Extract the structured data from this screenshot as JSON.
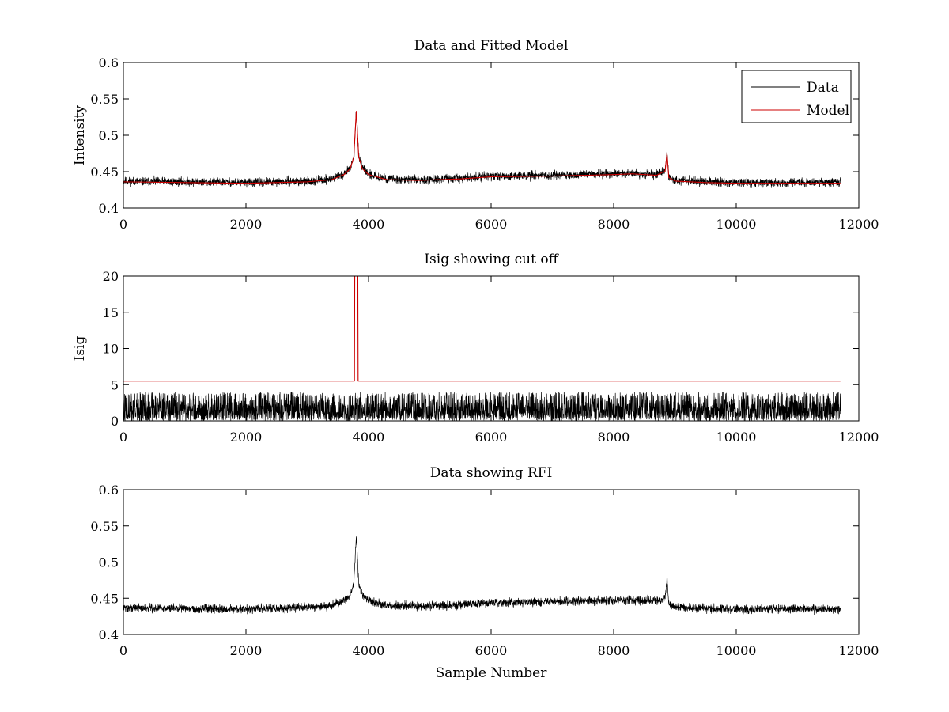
{
  "chart_data": [
    {
      "type": "line",
      "title": "Data and Fitted Model",
      "xlabel": "",
      "ylabel": "Intensity",
      "xlim": [
        0,
        12000
      ],
      "ylim": [
        0.4,
        0.6
      ],
      "xticks": [
        0,
        2000,
        4000,
        6000,
        8000,
        10000,
        12000
      ],
      "yticks": [
        0.4,
        0.45,
        0.5,
        0.55,
        0.6
      ],
      "ytick_labels": [
        "0.4",
        "0.45",
        "0.5",
        "0.55",
        "0.6"
      ],
      "grid": false,
      "legend": "top-right",
      "series": [
        {
          "name": "Data",
          "color": "#000000",
          "noise": 0.004,
          "x": [
            0,
            1000,
            2000,
            3000,
            3400,
            3600,
            3700,
            3760,
            3800,
            3840,
            3900,
            4000,
            4300,
            4800,
            5500,
            6000,
            7000,
            8000,
            8300,
            8700,
            8840,
            8870,
            8900,
            9000,
            9500,
            10000,
            11000,
            11700
          ],
          "y": [
            0.437,
            0.436,
            0.435,
            0.437,
            0.44,
            0.447,
            0.455,
            0.47,
            0.535,
            0.47,
            0.455,
            0.447,
            0.44,
            0.439,
            0.441,
            0.444,
            0.445,
            0.447,
            0.448,
            0.446,
            0.452,
            0.476,
            0.443,
            0.438,
            0.436,
            0.435,
            0.435,
            0.435
          ]
        },
        {
          "name": "Model",
          "color": "#cc0000",
          "noise": 0,
          "x": [
            0,
            1000,
            2000,
            3000,
            3400,
            3600,
            3700,
            3760,
            3800,
            3840,
            3900,
            4000,
            4300,
            4800,
            5500,
            6000,
            7000,
            8000,
            8300,
            8700,
            8840,
            8870,
            8900,
            9000,
            9500,
            10000,
            11000,
            11700
          ],
          "y": [
            0.436,
            0.435,
            0.434,
            0.436,
            0.439,
            0.446,
            0.454,
            0.47,
            0.533,
            0.47,
            0.454,
            0.446,
            0.439,
            0.438,
            0.44,
            0.443,
            0.444,
            0.446,
            0.447,
            0.445,
            0.451,
            0.475,
            0.442,
            0.437,
            0.435,
            0.434,
            0.434,
            0.434
          ]
        }
      ]
    },
    {
      "type": "line",
      "title": "Isig showing cut off",
      "xlabel": "",
      "ylabel": "Isig",
      "xlim": [
        0,
        12000
      ],
      "ylim": [
        0,
        20
      ],
      "xticks": [
        0,
        2000,
        4000,
        6000,
        8000,
        10000,
        12000
      ],
      "yticks": [
        0,
        5,
        10,
        15,
        20
      ],
      "ytick_labels": [
        "0",
        "5",
        "10",
        "15",
        "20"
      ],
      "grid": false,
      "series": [
        {
          "color": "#000000",
          "style": "noise",
          "x": [
            0,
            11700
          ],
          "y": [
            0,
            0
          ],
          "amplitude": 3.0,
          "max": 4.0
        },
        {
          "color": "#cc0000",
          "style": "line",
          "x": [
            0,
            3770,
            3775,
            3825,
            3830,
            11700
          ],
          "y": [
            5.5,
            5.5,
            20,
            20,
            5.5,
            5.5
          ]
        }
      ]
    },
    {
      "type": "line",
      "title": "Data showing RFI",
      "xlabel": "Sample Number",
      "ylabel": "",
      "xlim": [
        0,
        12000
      ],
      "ylim": [
        0.4,
        0.6
      ],
      "xticks": [
        0,
        2000,
        4000,
        6000,
        8000,
        10000,
        12000
      ],
      "yticks": [
        0.4,
        0.45,
        0.5,
        0.55,
        0.6
      ],
      "ytick_labels": [
        "0.4",
        "0.45",
        "0.5",
        "0.55",
        "0.6"
      ],
      "grid": false,
      "series": [
        {
          "color": "#000000",
          "noise": 0.004,
          "x": [
            0,
            1000,
            2000,
            3000,
            3400,
            3600,
            3700,
            3760,
            3800,
            3840,
            3900,
            4000,
            4300,
            4800,
            5500,
            6000,
            7000,
            8000,
            8300,
            8700,
            8840,
            8870,
            8900,
            9000,
            9500,
            10000,
            11000,
            11700
          ],
          "y": [
            0.437,
            0.436,
            0.435,
            0.437,
            0.44,
            0.447,
            0.455,
            0.47,
            0.535,
            0.47,
            0.455,
            0.447,
            0.44,
            0.439,
            0.441,
            0.444,
            0.445,
            0.447,
            0.448,
            0.446,
            0.452,
            0.476,
            0.443,
            0.438,
            0.436,
            0.435,
            0.435,
            0.435
          ]
        }
      ]
    }
  ]
}
